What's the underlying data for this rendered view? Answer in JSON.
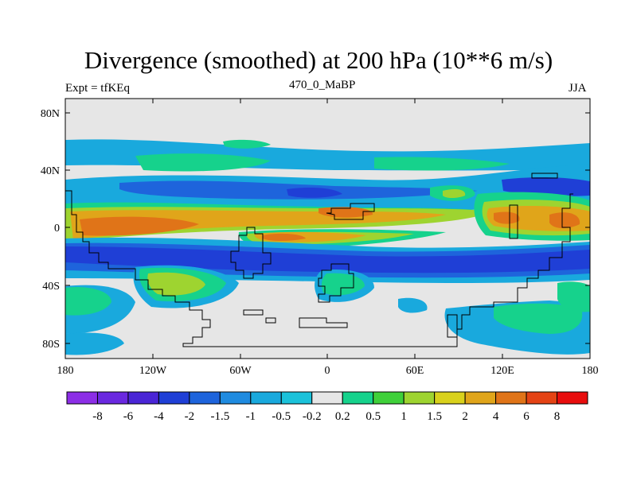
{
  "header": {
    "title": "Divergence (smoothed) at 200 hPa (10**6 m/s)",
    "left_label": "Expt = tfKEq",
    "center_label": "470_0_MaBP",
    "right_label": "JJA"
  },
  "axes": {
    "y_ticks": [
      "80N",
      "40N",
      "0",
      "40S",
      "80S"
    ],
    "x_ticks": [
      "180",
      "120W",
      "60W",
      "0",
      "60E",
      "120E",
      "180"
    ]
  },
  "colorbar": {
    "labels": [
      "-8",
      "-6",
      "-4",
      "-2",
      "-1.5",
      "-1",
      "-0.5",
      "-0.2",
      "0.2",
      "0.5",
      "1",
      "1.5",
      "2",
      "4",
      "6",
      "8"
    ],
    "colors": [
      "#8c2ee6",
      "#6a28e0",
      "#4a25d6",
      "#1f3fd6",
      "#1e64dc",
      "#1f8be0",
      "#19a9dd",
      "#1bc2da",
      "#e6e6e6",
      "#16d28c",
      "#3fd03a",
      "#9ed430",
      "#d9d11c",
      "#e0a51a",
      "#e07418",
      "#e44314",
      "#e80d0d"
    ]
  },
  "field_colors": {
    "background": "#e6e6e6",
    "strong_neg": "#1f3fd6",
    "mid_neg": "#1e64dc",
    "weak_neg": "#19a9dd",
    "weak_pos": "#16d28c",
    "mid_pos": "#9ed430",
    "strong_pos": "#e0a51a",
    "max_pos": "#e07418"
  }
}
